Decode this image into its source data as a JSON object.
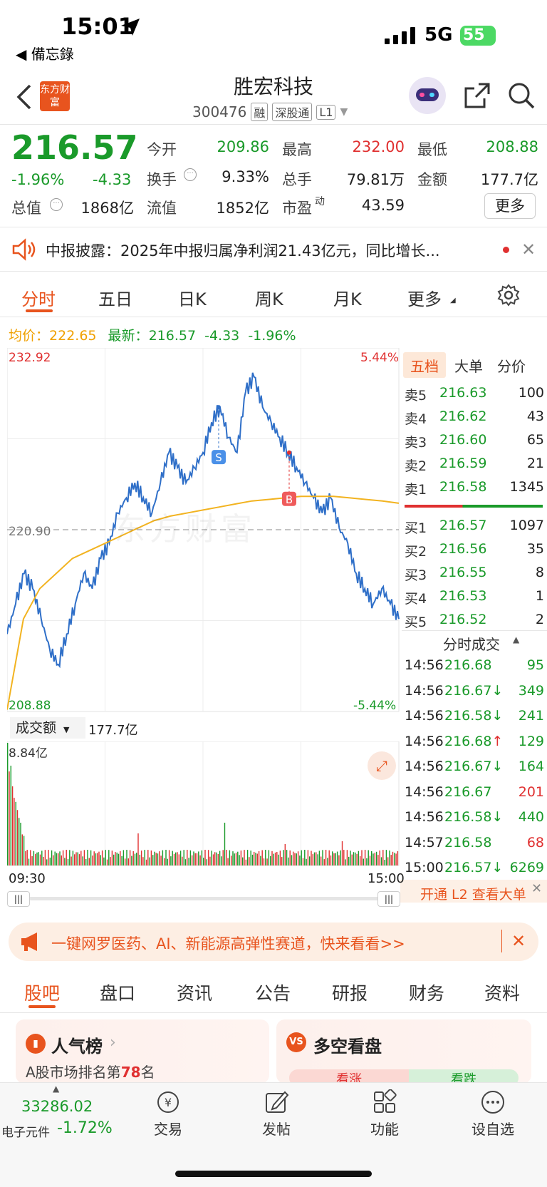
{
  "status": {
    "time": "15:01",
    "back_app": "◀ 備忘錄",
    "network": "5G",
    "battery": "55"
  },
  "header": {
    "title": "胜宏科技",
    "code": "300476",
    "tags": [
      "融",
      "深股通",
      "L1"
    ],
    "logo": "东方财富"
  },
  "quote": {
    "price": "216.57",
    "pct": "-1.96%",
    "chg": "-4.33",
    "rows": [
      [
        {
          "l": "今开",
          "v": "209.86",
          "c": "green"
        },
        {
          "l": "最高",
          "v": "232.00",
          "c": "red"
        },
        {
          "l": "最低",
          "v": "208.88",
          "c": "green"
        }
      ],
      [
        {
          "l": "换手",
          "v": "9.33%",
          "c": ""
        },
        {
          "l": "总手",
          "v": "79.81万",
          "c": ""
        },
        {
          "l": "金额",
          "v": "177.7亿",
          "c": ""
        }
      ],
      [
        {
          "l": "总值",
          "v": "1868亿",
          "c": ""
        },
        {
          "l": "流值",
          "v": "1852亿",
          "c": ""
        },
        {
          "l": "市盈",
          "v": "43.59",
          "c": ""
        }
      ]
    ],
    "more": "更多",
    "pe_sup": "动"
  },
  "notice": {
    "text": "中报披露：2025年中报归属净利润21.43亿元，同比增长..."
  },
  "chart_tabs": [
    "分时",
    "五日",
    "日K",
    "周K",
    "月K",
    "更多"
  ],
  "avg": {
    "label": "均价：",
    "value": "222.65",
    "latest_label": "最新：",
    "latest": "216.57",
    "chg": "-4.33",
    "pct": "-1.96%"
  },
  "chart_data": {
    "type": "line",
    "y_max": "232.92",
    "y_min": "208.88",
    "y_ref": "220.90",
    "pct_max": "5.44%",
    "pct_min": "-5.44%",
    "x_start": "09:30",
    "x_end": "15:00",
    "watermark": "东方财富",
    "price_series": [
      214,
      216,
      218,
      217,
      215,
      213,
      212,
      214,
      216,
      218,
      217,
      219,
      220,
      222,
      223,
      224,
      223,
      222,
      224,
      226,
      225,
      224,
      225,
      226,
      228,
      229,
      227,
      226,
      230,
      231,
      229,
      228,
      227,
      226,
      225,
      224,
      223,
      222,
      223,
      221,
      220,
      218,
      217,
      216,
      217,
      216,
      215
    ],
    "avg_series": [
      209,
      215,
      217,
      218,
      219,
      219.5,
      220,
      220.5,
      221,
      221.5,
      221.8,
      222,
      222.2,
      222.4,
      222.6,
      222.8,
      222.9,
      223,
      223.1,
      223.1,
      223.1,
      223,
      222.9,
      222.8,
      222.65
    ],
    "markers": [
      {
        "label": "S"
      },
      {
        "label": "B"
      }
    ],
    "volume_label": "成交额",
    "volume_total": "177.7亿",
    "volume_max": "8.84亿"
  },
  "orderbook": {
    "tabs": [
      "五档",
      "大单",
      "分价"
    ],
    "asks": [
      {
        "n": "卖5",
        "p": "216.63",
        "v": "100"
      },
      {
        "n": "卖4",
        "p": "216.62",
        "v": "43"
      },
      {
        "n": "卖3",
        "p": "216.60",
        "v": "65"
      },
      {
        "n": "卖2",
        "p": "216.59",
        "v": "21"
      },
      {
        "n": "卖1",
        "p": "216.58",
        "v": "1345"
      }
    ],
    "bids": [
      {
        "n": "买1",
        "p": "216.57",
        "v": "1097"
      },
      {
        "n": "买2",
        "p": "216.56",
        "v": "35"
      },
      {
        "n": "买3",
        "p": "216.55",
        "v": "8"
      },
      {
        "n": "买4",
        "p": "216.53",
        "v": "1"
      },
      {
        "n": "买5",
        "p": "216.52",
        "v": "2"
      }
    ]
  },
  "ticks": {
    "title": "分时成交",
    "rows": [
      {
        "t": "14:56",
        "p": "216.68",
        "a": "",
        "v": "95",
        "c": "green"
      },
      {
        "t": "14:56",
        "p": "216.67",
        "a": "↓",
        "v": "349",
        "c": "green"
      },
      {
        "t": "14:56",
        "p": "216.58",
        "a": "↓",
        "v": "241",
        "c": "green"
      },
      {
        "t": "14:56",
        "p": "216.68",
        "a": "↑",
        "v": "129",
        "c": "green"
      },
      {
        "t": "14:56",
        "p": "216.67",
        "a": "↓",
        "v": "164",
        "c": "green"
      },
      {
        "t": "14:56",
        "p": "216.67",
        "a": "",
        "v": "201",
        "c": "red"
      },
      {
        "t": "14:56",
        "p": "216.58",
        "a": "↓",
        "v": "440",
        "c": "green"
      },
      {
        "t": "14:57",
        "p": "216.58",
        "a": "",
        "v": "68",
        "c": "red"
      },
      {
        "t": "15:00",
        "p": "216.57",
        "a": "↓",
        "v": "6269",
        "c": "green"
      }
    ],
    "l2": "开通 L2 查看大单"
  },
  "banner": {
    "text": "一键网罗医药、AI、新能源高弹性赛道，快来看看>>"
  },
  "section_tabs": [
    "股吧",
    "盘口",
    "资讯",
    "公告",
    "研报",
    "财务",
    "资料"
  ],
  "cards": {
    "pop_title": "人气榜",
    "pop_rank_prefix": "A股市场排名第",
    "pop_rank": "78",
    "pop_rank_suffix": "名",
    "bull_title": "多空看盘",
    "bull_up": "看涨",
    "bull_down": "看跌"
  },
  "bottom_nav": {
    "index_value": "33286.02",
    "index_name": "电子元件",
    "index_pct": "-1.72%",
    "items": [
      "交易",
      "发帖",
      "功能",
      "设自选"
    ]
  }
}
